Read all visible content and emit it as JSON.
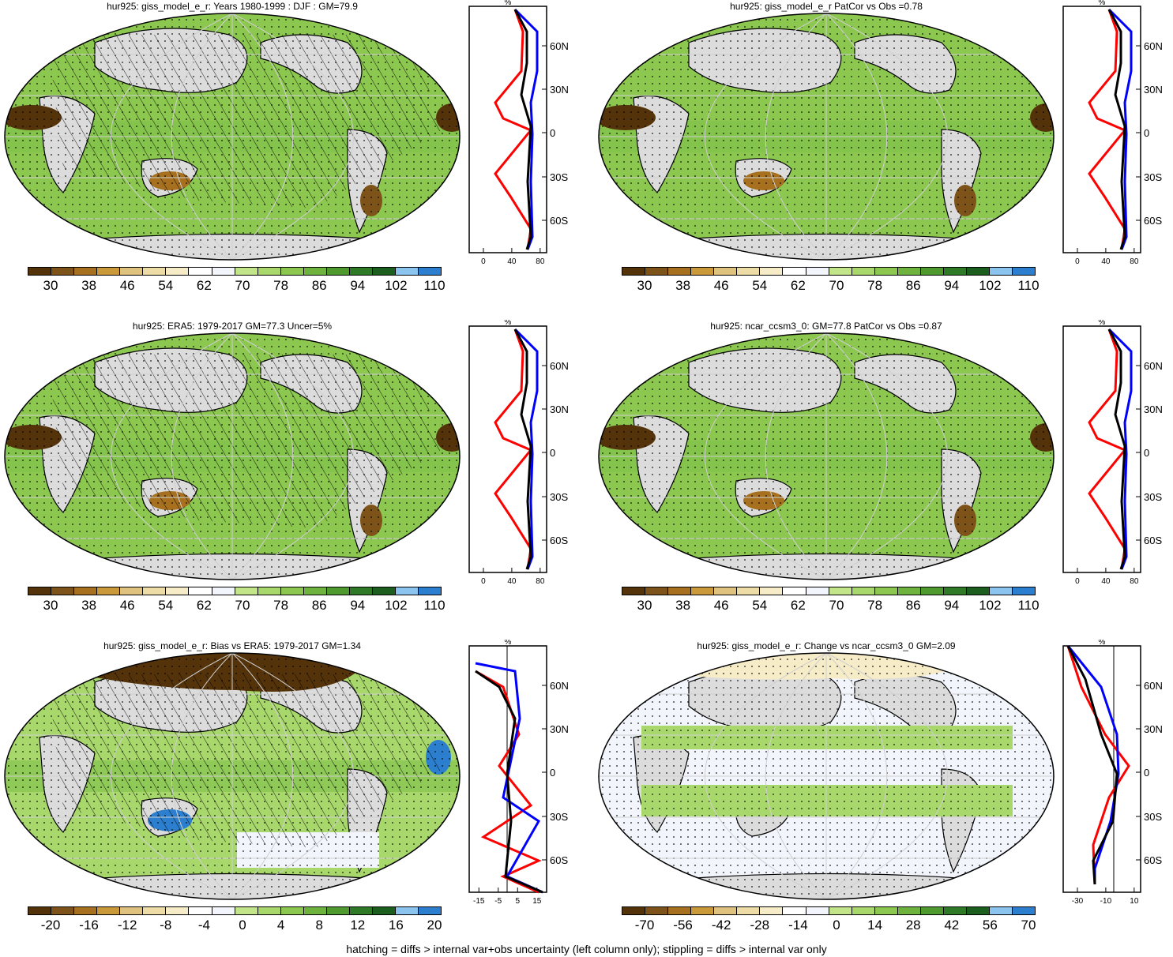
{
  "panels": [
    {
      "title": "hur925: giss_model_e_r: Years 1980-1999 : DJF : GM=79.9",
      "hatch": true,
      "scale": "abs"
    },
    {
      "title": "hur925: giss_model_e_r PatCor vs Obs =0.78",
      "hatch": false,
      "scale": "abs"
    },
    {
      "title": "hur925: ERA5: 1979-2017 GM=77.3 Uncer=5%",
      "hatch": true,
      "scale": "abs"
    },
    {
      "title": "hur925: ncar_ccsm3_0: GM=77.8 PatCor vs Obs =0.87",
      "hatch": false,
      "scale": "abs"
    },
    {
      "title": "hur925: giss_model_e_r: Bias vs ERA5: 1979-2017 GM=1.34",
      "hatch": true,
      "scale": "bias"
    },
    {
      "title": "hur925: giss_model_e_r: Change vs ncar_ccsm3_0 GM=2.09",
      "hatch": false,
      "scale": "change"
    }
  ],
  "colorbars": {
    "abs": {
      "labels": [
        "30",
        "38",
        "46",
        "54",
        "62",
        "70",
        "78",
        "86",
        "94",
        "102",
        "110"
      ]
    },
    "bias": {
      "labels": [
        "-20",
        "-16",
        "-12",
        "-8",
        "-4",
        "0",
        "4",
        "8",
        "12",
        "16",
        "20"
      ]
    },
    "change": {
      "labels": [
        "-70",
        "-56",
        "-42",
        "-28",
        "-14",
        "0",
        "14",
        "28",
        "42",
        "56",
        "70"
      ]
    }
  },
  "colorbar_colors": [
    "#54330a",
    "#7d531a",
    "#a6701f",
    "#c9993a",
    "#dfc27d",
    "#eedca6",
    "#f6ecc8",
    "#ffffff",
    "#f2f5fc",
    "#c2e58a",
    "#a8d86b",
    "#8cc850",
    "#6eb33d",
    "#4e9a2f",
    "#2f7a26",
    "#1c5e1e",
    "#8bc4ef",
    "#2c7fce"
  ],
  "profiles": {
    "unit": "%",
    "lat_labels": [
      "60N",
      "30N",
      "0",
      "30S",
      "60S"
    ],
    "abs_x_ticks": [
      "0",
      "40",
      "80"
    ],
    "bias_x_ticks": [
      "-15",
      "-5",
      "5",
      "15"
    ],
    "change_x_ticks": [
      "-30",
      "-10",
      "10"
    ]
  },
  "footnote": "hatching = diffs > internal var+obs uncertainty (left column only); stippling = diffs > internal var only",
  "colors": {
    "land_dry": "#7d531a",
    "ocean": "#8cc850",
    "ice": "#dcdcdc",
    "line_red": "#ff0000",
    "line_blue": "#0000ff",
    "line_black": "#000000"
  }
}
